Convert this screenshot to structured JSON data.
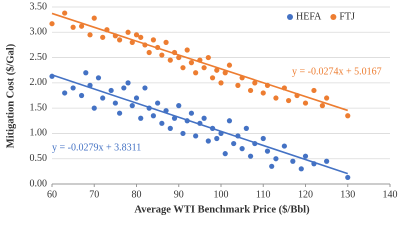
{
  "chart_data": {
    "type": "scatter",
    "x_label": "Average WTI Benchmark Price ($/Bbl)",
    "y_label": "Mitigation Cost ($/Gal)",
    "xlim": [
      60,
      140
    ],
    "xticks": [
      60,
      70,
      80,
      90,
      100,
      110,
      120,
      130,
      140
    ],
    "ylim": [
      0,
      3.5
    ],
    "yticks": [
      {
        "value": 0,
        "label": "0.00"
      },
      {
        "value": 0.5,
        "label": "0.50"
      },
      {
        "value": 1,
        "label": "1.00"
      },
      {
        "value": 1.5,
        "label": "1.50"
      },
      {
        "value": 2,
        "label": "2.00"
      },
      {
        "value": 2.5,
        "label": "2.50"
      },
      {
        "value": 3,
        "label": "3.00"
      },
      {
        "value": 3.5,
        "label": "3.50"
      }
    ],
    "grid": true,
    "legend": "top-right",
    "series": [
      {
        "name": "HEFA",
        "color": "#4472c4",
        "x": [
          60,
          63,
          65,
          67,
          68,
          69,
          70,
          71,
          72,
          74,
          75,
          76,
          77,
          78,
          79,
          80,
          81,
          82,
          83,
          84,
          85,
          86,
          87,
          88,
          89,
          90,
          91,
          92,
          93,
          94,
          95,
          96,
          97,
          98,
          99,
          100,
          101,
          102,
          103,
          104,
          105,
          106,
          107,
          108,
          110,
          111,
          112,
          113,
          115,
          117,
          119,
          120,
          122,
          125,
          130
        ],
        "values": [
          2.13,
          1.8,
          1.9,
          1.75,
          2.2,
          1.95,
          1.5,
          2.1,
          1.7,
          1.85,
          1.6,
          1.4,
          1.9,
          2.0,
          1.55,
          1.7,
          1.3,
          1.9,
          1.5,
          1.35,
          1.6,
          1.2,
          1.45,
          1.1,
          1.3,
          1.55,
          1.0,
          1.25,
          1.4,
          0.95,
          1.2,
          1.3,
          0.85,
          1.1,
          0.9,
          1.0,
          0.6,
          1.25,
          0.8,
          0.95,
          0.7,
          1.1,
          0.55,
          0.8,
          0.9,
          0.65,
          0.35,
          0.5,
          0.75,
          0.45,
          0.3,
          0.55,
          0.4,
          0.45,
          0.13
        ],
        "trendline": {
          "slope": -0.0279,
          "intercept": 3.8311,
          "label": "y = -0.0279x + 3.8311"
        }
      },
      {
        "name": "FTJ",
        "color": "#ed7d31",
        "x": [
          60,
          63,
          65,
          67,
          69,
          70,
          72,
          73,
          75,
          76,
          78,
          79,
          80,
          81,
          82,
          83,
          84,
          85,
          86,
          87,
          88,
          89,
          90,
          91,
          92,
          93,
          94,
          95,
          96,
          97,
          98,
          99,
          100,
          101,
          102,
          104,
          105,
          107,
          108,
          110,
          111,
          113,
          115,
          116,
          118,
          120,
          122,
          124,
          125,
          130
        ],
        "values": [
          3.17,
          3.38,
          3.1,
          3.12,
          2.95,
          3.28,
          2.9,
          3.05,
          2.93,
          2.85,
          3.0,
          2.8,
          2.95,
          2.9,
          2.75,
          2.6,
          2.85,
          2.7,
          2.55,
          2.8,
          2.45,
          2.6,
          2.5,
          2.3,
          2.65,
          2.4,
          2.2,
          2.45,
          2.3,
          2.5,
          2.1,
          2.25,
          2.0,
          2.2,
          2.35,
          1.95,
          2.1,
          1.85,
          2.0,
          1.8,
          1.95,
          1.7,
          1.9,
          1.65,
          1.75,
          1.6,
          1.85,
          1.55,
          1.7,
          1.35
        ],
        "trendline": {
          "slope": -0.0274,
          "intercept": 5.0167,
          "label": "y = -0.0274x + 5.0167"
        }
      }
    ]
  }
}
